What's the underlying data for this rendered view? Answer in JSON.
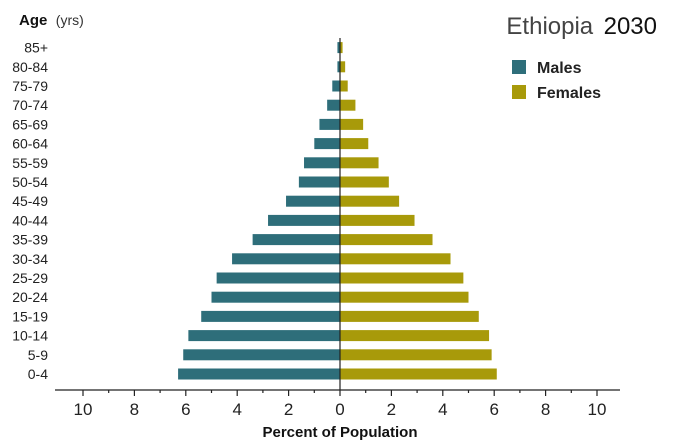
{
  "chart_data": {
    "type": "bar",
    "orientation": "horizontal",
    "layout": "population-pyramid",
    "title_country": "Ethiopia",
    "title_year": "2030",
    "ylabel_bold": "Age",
    "ylabel_unit": "(yrs)",
    "xlabel": "Percent of Population",
    "xlim": [
      -10,
      10
    ],
    "xticks": [
      -10,
      -8,
      -6,
      -4,
      -2,
      0,
      2,
      4,
      6,
      8,
      10
    ],
    "xtick_labels": [
      "10",
      "8",
      "6",
      "4",
      "2",
      "0",
      "2",
      "4",
      "6",
      "8",
      "10"
    ],
    "categories": [
      "85+",
      "80-84",
      "75-79",
      "70-74",
      "65-69",
      "60-64",
      "55-59",
      "50-54",
      "45-49",
      "40-44",
      "35-39",
      "30-34",
      "25-29",
      "20-24",
      "15-19",
      "10-14",
      "5-9",
      "0-4"
    ],
    "series": [
      {
        "name": "Males",
        "color": "#2e6e7a",
        "side": "left",
        "values": [
          0.1,
          0.1,
          0.3,
          0.5,
          0.8,
          1.0,
          1.4,
          1.6,
          2.1,
          2.8,
          3.4,
          4.2,
          4.8,
          5.0,
          5.4,
          5.9,
          6.1,
          6.3
        ]
      },
      {
        "name": "Females",
        "color": "#a89a0a",
        "side": "right",
        "values": [
          0.1,
          0.2,
          0.3,
          0.6,
          0.9,
          1.1,
          1.5,
          1.9,
          2.3,
          2.9,
          3.6,
          4.3,
          4.8,
          5.0,
          5.4,
          5.8,
          5.9,
          6.1
        ]
      }
    ],
    "legend_position": "top-right",
    "grid": false
  }
}
